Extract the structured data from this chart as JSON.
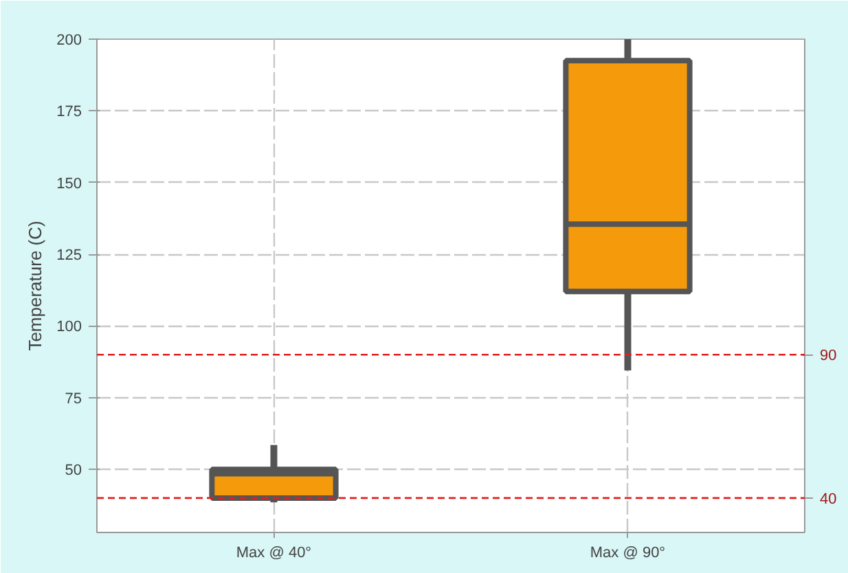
{
  "chart_data": {
    "type": "box",
    "ylabel": "Temperature (C)",
    "categories": [
      "Max @ 40°",
      "Max @ 90°"
    ],
    "series": [
      {
        "color": "#f59a0a",
        "boxes": [
          {
            "low": 38.5,
            "q1": 40,
            "median": 48.5,
            "q3": 50,
            "high": 58.5
          },
          {
            "low": 84.5,
            "q1": 112,
            "median": 135.5,
            "q3": 192.5,
            "high": 200
          }
        ]
      }
    ],
    "ylim": [
      28,
      200
    ],
    "yticks": [
      50,
      75,
      100,
      125,
      150,
      175,
      200
    ],
    "ref_lines": [
      {
        "axis": "y",
        "value": 90,
        "label": "90",
        "color": "#e02020",
        "line_style": "dashed"
      },
      {
        "axis": "y",
        "value": 40,
        "label": "40",
        "color": "#e02020",
        "line_style": "dashed"
      }
    ],
    "grid": true
  }
}
